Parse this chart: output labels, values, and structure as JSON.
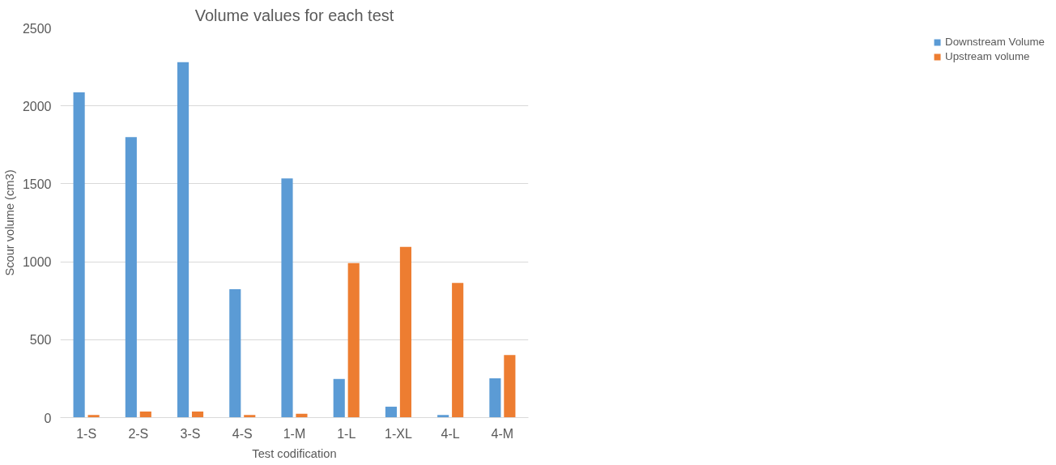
{
  "chart_data": {
    "type": "bar",
    "title": "Volume values for each test",
    "xlabel": "Test codification",
    "ylabel": "Scour volume (cm3)",
    "categories": [
      "1-S",
      "2-S",
      "3-S",
      "4-S",
      "1-M",
      "1-L",
      "1-XL",
      "4-L",
      "4-M"
    ],
    "series": [
      {
        "name": "Downstream Volume",
        "color": "#5b9bd5",
        "values": [
          2087,
          1800,
          2281,
          824,
          1535,
          248,
          70,
          17,
          252
        ]
      },
      {
        "name": "Upstream volume",
        "color": "#ed7d31",
        "values": [
          17,
          39,
          39,
          17,
          25,
          992,
          1095,
          864,
          401
        ]
      }
    ],
    "ylim": [
      0,
      2500
    ],
    "yticks": [
      0,
      500,
      1000,
      1500,
      2000,
      2500
    ],
    "grid": "y",
    "legend": "right"
  }
}
